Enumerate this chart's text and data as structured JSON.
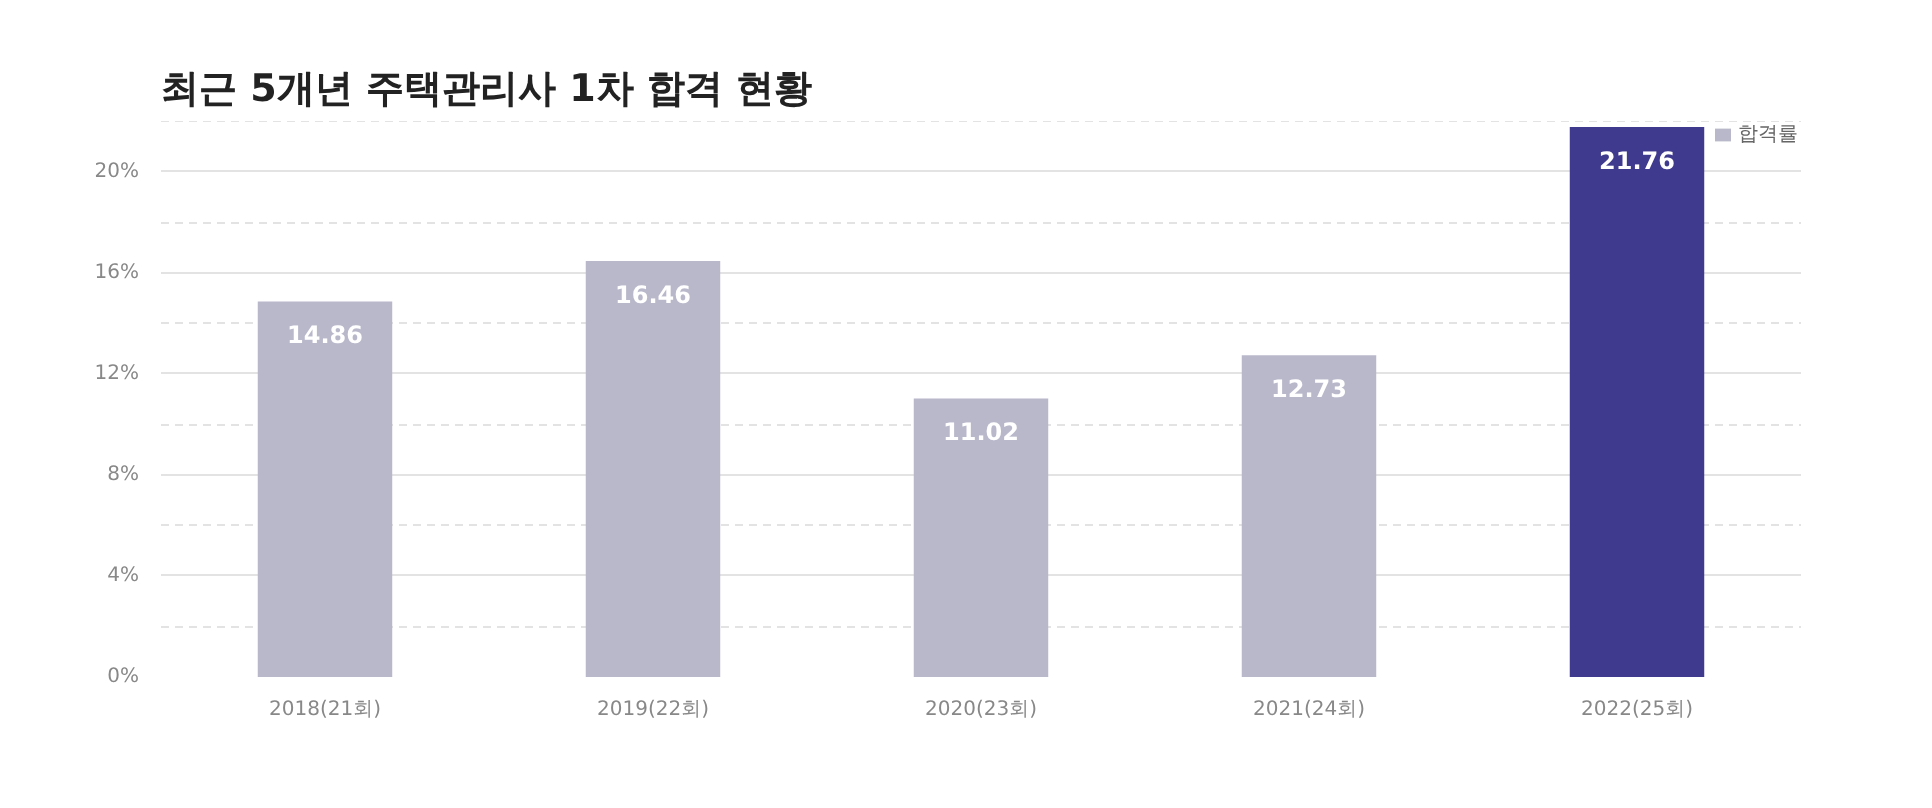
{
  "chart_data": {
    "type": "bar",
    "title": "최근 5개년 주택관리사 1차 합격 현황",
    "categories": [
      "2018(21회)",
      "2019(22회)",
      "2020(23회)",
      "2021(24회)",
      "2022(25회)"
    ],
    "series": [
      {
        "name": "합격률",
        "colors": [
          "#b9b8cb",
          "#b9b8cb",
          "#b9b8cb",
          "#b9b8cb",
          "#3f3a8d"
        ],
        "values": [
          14.86,
          16.46,
          11.02,
          12.73,
          21.76
        ]
      }
    ],
    "ylim": [
      0,
      22
    ],
    "yticks": [
      {
        "value": 0,
        "label": "0%"
      },
      {
        "value": 2,
        "label": null
      },
      {
        "value": 4,
        "label": "4%"
      },
      {
        "value": 6,
        "label": null
      },
      {
        "value": 8,
        "label": "8%"
      },
      {
        "value": 10,
        "label": null
      },
      {
        "value": 12,
        "label": "12%"
      },
      {
        "value": 14,
        "label": null
      },
      {
        "value": 16,
        "label": "16%"
      },
      {
        "value": 18,
        "label": null
      },
      {
        "value": 20,
        "label": "20%"
      },
      {
        "value": 22,
        "label": null
      }
    ],
    "grid": "y",
    "legend": "top right",
    "data_labels": true
  }
}
